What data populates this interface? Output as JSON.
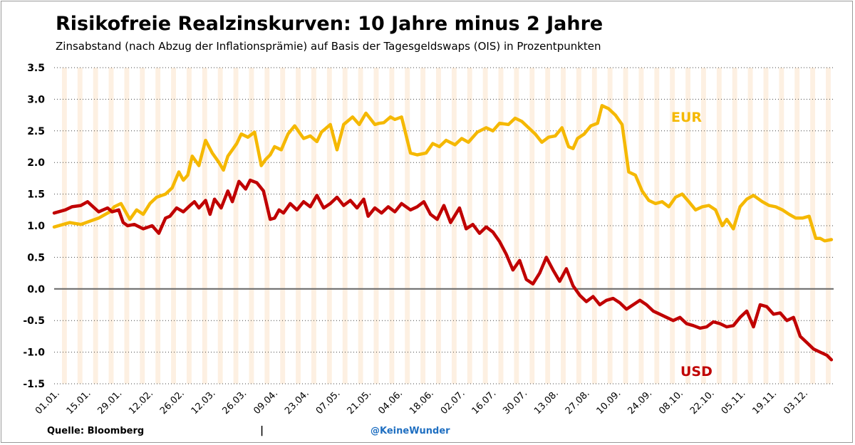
{
  "header": {
    "title": "Risikofreie Realzinskurven: 10 Jahre minus 2 Jahre",
    "subtitle": "Zinsabstand (nach Abzug der Inflationsprämie) auf Basis der Tagesgeldswaps (OIS) in Prozentpunkten"
  },
  "footer": {
    "source": "Quelle: Bloomberg",
    "separator": "|",
    "handle": "@KeineWunder"
  },
  "colors": {
    "eur": "#f5b800",
    "usd": "#c00000",
    "band": "#fdf0e2",
    "grid": "#444444",
    "zero_line": "#666666"
  },
  "chart_data": {
    "type": "line",
    "title": "Risikofreie Realzinskurven: 10 Jahre minus 2 Jahre",
    "ylim": [
      -1.5,
      3.5
    ],
    "yticks": [
      3.5,
      3.0,
      2.5,
      2.0,
      1.5,
      1.0,
      0.5,
      0.0,
      -0.5,
      -1.0,
      -1.5
    ],
    "ytick_labels": [
      "3.5",
      "3.0",
      "2.5",
      "2.0",
      "1.5",
      "1.0",
      "0.5",
      "0.0",
      "-0.5",
      "-1.0",
      "-1.5"
    ],
    "xticks": [
      "01.01.",
      "15.01.",
      "29.01.",
      "12.02.",
      "26.02.",
      "12.03.",
      "26.03.",
      "09.04.",
      "23.04.",
      "07.05.",
      "21.05.",
      "04.06.",
      "18.06.",
      "02.07.",
      "16.07.",
      "30.07.",
      "13.08.",
      "27.08.",
      "10.09.",
      "24.09.",
      "08.10.",
      "22.10.",
      "05.11.",
      "19.11.",
      "03.12."
    ],
    "grid": "horizontal dotted",
    "series": [
      {
        "name": "EUR",
        "color": "#f5b800",
        "label_position": "right-upper",
        "x_day": [
          0,
          7,
          12,
          20,
          25,
          27,
          30,
          34,
          37,
          40,
          43,
          46,
          50,
          53,
          56,
          58,
          60,
          62,
          65,
          68,
          71,
          74,
          76,
          78,
          80,
          82,
          84,
          87,
          90,
          93,
          95,
          97,
          99,
          102,
          105,
          108,
          112,
          115,
          118,
          120,
          124,
          127,
          130,
          134,
          137,
          140,
          144,
          146,
          148,
          151,
          153,
          156,
          160,
          163,
          167,
          170,
          173,
          176,
          180,
          183,
          186,
          190,
          194,
          197,
          200,
          204,
          207,
          210,
          213,
          216,
          219,
          222,
          225,
          228,
          231,
          233,
          235,
          238,
          241,
          244,
          246,
          249,
          252,
          255,
          258,
          261,
          264,
          267,
          270,
          273,
          276,
          279,
          282,
          285,
          288,
          291,
          294,
          297,
          300,
          302,
          305,
          308,
          311,
          314,
          318,
          321,
          324,
          327,
          330,
          333,
          336,
          339,
          342,
          344,
          346,
          349
        ],
        "values": [
          0.98,
          1.05,
          1.02,
          1.12,
          1.22,
          1.3,
          1.35,
          1.1,
          1.25,
          1.18,
          1.35,
          1.45,
          1.5,
          1.6,
          1.85,
          1.72,
          1.8,
          2.1,
          1.95,
          2.35,
          2.15,
          2.0,
          1.88,
          2.1,
          2.2,
          2.3,
          2.45,
          2.4,
          2.48,
          1.95,
          2.05,
          2.12,
          2.25,
          2.2,
          2.45,
          2.58,
          2.38,
          2.42,
          2.33,
          2.48,
          2.6,
          2.2,
          2.6,
          2.72,
          2.6,
          2.78,
          2.6,
          2.62,
          2.63,
          2.72,
          2.68,
          2.72,
          2.15,
          2.12,
          2.15,
          2.3,
          2.25,
          2.35,
          2.28,
          2.38,
          2.32,
          2.48,
          2.55,
          2.5,
          2.62,
          2.6,
          2.7,
          2.65,
          2.55,
          2.45,
          2.32,
          2.4,
          2.42,
          2.55,
          2.25,
          2.22,
          2.38,
          2.45,
          2.58,
          2.62,
          2.9,
          2.85,
          2.75,
          2.6,
          1.85,
          1.8,
          1.55,
          1.4,
          1.35,
          1.38,
          1.3,
          1.45,
          1.5,
          1.38,
          1.25,
          1.3,
          1.32,
          1.25,
          1.0,
          1.1,
          0.95,
          1.3,
          1.42,
          1.48,
          1.38,
          1.32,
          1.3,
          1.25,
          1.18,
          1.12,
          1.12,
          1.15,
          0.8,
          0.8,
          0.76,
          0.78
        ]
      },
      {
        "name": "USD",
        "color": "#c00000",
        "label_position": "right-lower",
        "x_day": [
          0,
          5,
          8,
          12,
          15,
          20,
          24,
          26,
          29,
          31,
          33,
          36,
          40,
          44,
          47,
          50,
          52,
          55,
          58,
          61,
          63,
          65,
          68,
          70,
          72,
          75,
          78,
          80,
          83,
          86,
          88,
          91,
          94,
          97,
          99,
          101,
          103,
          106,
          109,
          112,
          115,
          118,
          121,
          124,
          127,
          130,
          133,
          136,
          139,
          141,
          144,
          147,
          150,
          153,
          156,
          160,
          163,
          166,
          169,
          172,
          175,
          178,
          182,
          185,
          188,
          191,
          194,
          197,
          200,
          203,
          206,
          209,
          212,
          215,
          218,
          221,
          224,
          227,
          230,
          233,
          236,
          239,
          242,
          245,
          248,
          251,
          254,
          257,
          260,
          263,
          266,
          269,
          272,
          275,
          278,
          281,
          284,
          287,
          290,
          293,
          296,
          299,
          302,
          305,
          308,
          311,
          314,
          317,
          320,
          323,
          326,
          329,
          332,
          335,
          338,
          341,
          344,
          347,
          349
        ],
        "values": [
          1.2,
          1.25,
          1.3,
          1.32,
          1.38,
          1.22,
          1.28,
          1.22,
          1.25,
          1.05,
          1.0,
          1.02,
          0.95,
          1.0,
          0.88,
          1.12,
          1.15,
          1.28,
          1.22,
          1.32,
          1.38,
          1.28,
          1.4,
          1.18,
          1.42,
          1.28,
          1.55,
          1.38,
          1.7,
          1.58,
          1.72,
          1.68,
          1.55,
          1.1,
          1.12,
          1.25,
          1.2,
          1.35,
          1.25,
          1.38,
          1.3,
          1.48,
          1.28,
          1.35,
          1.45,
          1.32,
          1.4,
          1.28,
          1.42,
          1.15,
          1.28,
          1.2,
          1.3,
          1.22,
          1.35,
          1.25,
          1.3,
          1.38,
          1.18,
          1.1,
          1.32,
          1.05,
          1.28,
          0.95,
          1.02,
          0.88,
          0.98,
          0.9,
          0.75,
          0.55,
          0.3,
          0.45,
          0.15,
          0.08,
          0.25,
          0.5,
          0.3,
          0.12,
          0.32,
          0.05,
          -0.1,
          -0.2,
          -0.12,
          -0.25,
          -0.18,
          -0.15,
          -0.22,
          -0.32,
          -0.25,
          -0.18,
          -0.25,
          -0.35,
          -0.4,
          -0.45,
          -0.5,
          -0.45,
          -0.55,
          -0.58,
          -0.62,
          -0.6,
          -0.52,
          -0.55,
          -0.6,
          -0.58,
          -0.45,
          -0.35,
          -0.6,
          -0.25,
          -0.28,
          -0.4,
          -0.38,
          -0.5,
          -0.45,
          -0.75,
          -0.85,
          -0.95,
          -1.0,
          -1.05,
          -1.12
        ]
      }
    ]
  }
}
